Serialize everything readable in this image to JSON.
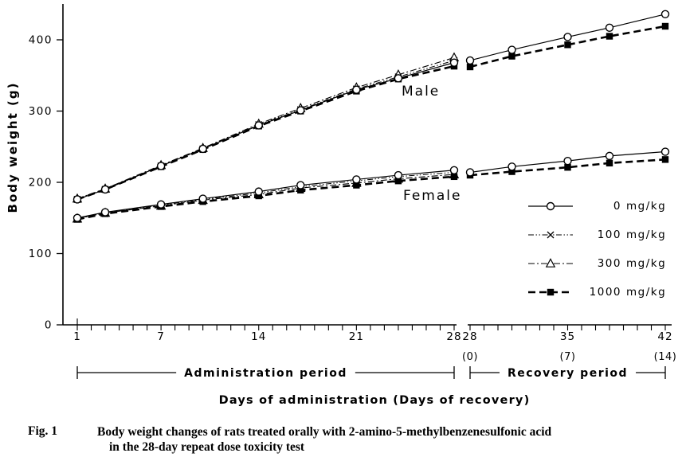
{
  "figure": {
    "fig_label": "Fig. 1",
    "caption_line1": "Body weight changes of rats treated orally with 2-amino-5-methylbenzenesulfonic acid",
    "caption_line2": "in the 28-day repeat dose toxicity test"
  },
  "chart_data": {
    "type": "line",
    "title": "",
    "ylabel": "Body weight (g)",
    "xlabel": "Days of administration (Days of recovery)",
    "ylim": [
      0,
      450
    ],
    "yticks": [
      0,
      100,
      200,
      300,
      400
    ],
    "grid": false,
    "legend_position": "lower-right",
    "axis_break_between_segments": true,
    "annotations": [
      {
        "id": "male",
        "label": "Male"
      },
      {
        "id": "female",
        "label": "Female"
      }
    ],
    "segments": [
      {
        "id": "admin",
        "xlim": [
          1,
          28
        ],
        "bracket_label": "Administration period",
        "xticks": [
          {
            "x": 1,
            "label": "1"
          },
          {
            "x": 7,
            "label": "7"
          },
          {
            "x": 14,
            "label": "14"
          },
          {
            "x": 21,
            "label": "21"
          },
          {
            "x": 28,
            "label": "28"
          }
        ]
      },
      {
        "id": "recovery",
        "xlim": [
          28,
          42
        ],
        "bracket_label": "Recovery period",
        "xticks": [
          {
            "x": 28,
            "label": "28",
            "sub": "(0)"
          },
          {
            "x": 35,
            "label": "35",
            "sub": "(7)"
          },
          {
            "x": 42,
            "label": "42",
            "sub": "(14)"
          }
        ]
      }
    ],
    "admin_days": [
      1,
      3,
      7,
      10,
      14,
      17,
      21,
      24,
      28
    ],
    "recovery_days": [
      28,
      31,
      35,
      38,
      42
    ],
    "series": [
      {
        "label": "0 mg/kg",
        "marker": "circle",
        "line": "solid",
        "male": {
          "admin": [
            176,
            190,
            223,
            247,
            280,
            301,
            330,
            346,
            368
          ],
          "recovery": [
            371,
            386,
            404,
            417,
            436
          ]
        },
        "female": {
          "admin": [
            150,
            158,
            169,
            177,
            187,
            196,
            204,
            210,
            217
          ],
          "recovery": [
            214,
            222,
            230,
            237,
            243
          ]
        }
      },
      {
        "label": "100 mg/kg",
        "marker": "x",
        "line": "dash-dot-dot",
        "male": {
          "admin": [
            176,
            190,
            223,
            247,
            281,
            302,
            331,
            348,
            371
          ]
        },
        "female": {
          "admin": [
            149,
            157,
            168,
            176,
            185,
            194,
            202,
            208,
            214
          ]
        }
      },
      {
        "label": "300 mg/kg",
        "marker": "triangle",
        "line": "dash-dot",
        "male": {
          "admin": [
            177,
            191,
            224,
            248,
            282,
            304,
            333,
            351,
            375
          ]
        },
        "female": {
          "admin": [
            149,
            157,
            167,
            175,
            183,
            192,
            199,
            205,
            211
          ]
        }
      },
      {
        "label": "1000 mg/kg",
        "marker": "square",
        "line": "bold-dash",
        "male": {
          "admin": [
            176,
            190,
            222,
            246,
            279,
            300,
            328,
            345,
            363
          ],
          "recovery": [
            362,
            377,
            393,
            405,
            419
          ]
        },
        "female": {
          "admin": [
            148,
            156,
            166,
            173,
            181,
            189,
            196,
            202,
            208
          ],
          "recovery": [
            210,
            215,
            221,
            227,
            232
          ]
        }
      }
    ]
  }
}
